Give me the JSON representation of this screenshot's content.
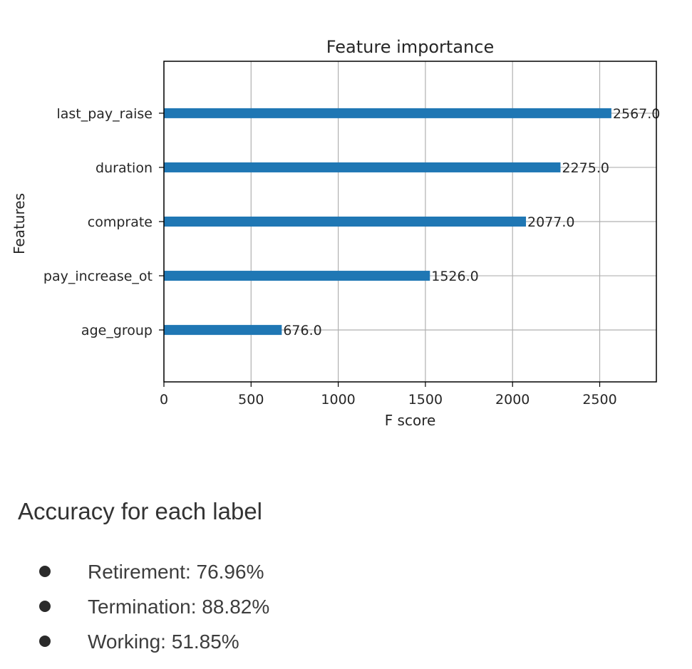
{
  "chart_data": {
    "type": "bar",
    "orientation": "horizontal",
    "title": "Feature importance",
    "xlabel": "F score",
    "ylabel": "Features",
    "categories": [
      "last_pay_raise",
      "duration",
      "comprate",
      "pay_increase_ot",
      "age_group"
    ],
    "values": [
      2567.0,
      2275.0,
      2077.0,
      1526.0,
      676.0
    ],
    "value_labels": [
      "2567.0",
      "2275.0",
      "2077.0",
      "1526.0",
      "676.0"
    ],
    "xlim": [
      0,
      2825
    ],
    "xticks": [
      0,
      500,
      1000,
      1500,
      2000,
      2500
    ],
    "xtick_labels": [
      "0",
      "500",
      "1000",
      "1500",
      "2000",
      "2500"
    ],
    "grid": true,
    "bar_color": "#1f77b4"
  },
  "accuracy": {
    "heading": "Accuracy for each label",
    "items": [
      {
        "text": "Retirement: 76.96%"
      },
      {
        "text": "Termination: 88.82%"
      },
      {
        "text": "Working: 51.85%"
      }
    ]
  }
}
